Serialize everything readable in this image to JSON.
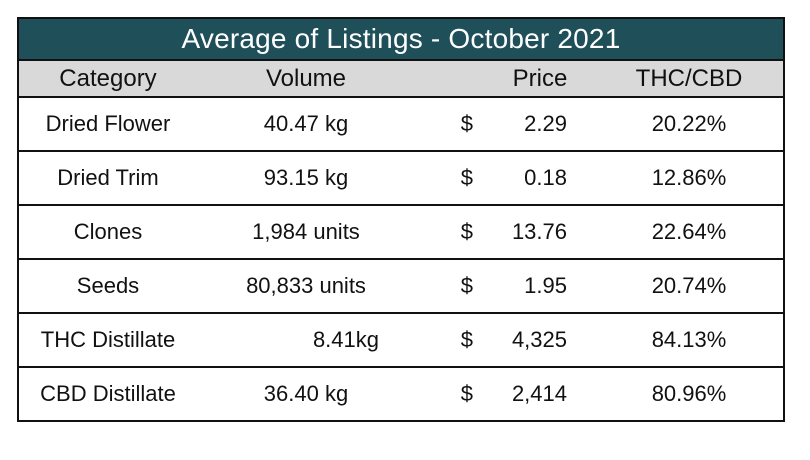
{
  "title": "Average of Listings - October 2021",
  "columns": {
    "category": "Category",
    "volume": "Volume",
    "price": "Price",
    "thc_cbd": "THC/CBD"
  },
  "rows": [
    {
      "category": "Dried Flower",
      "volume": "40.47 kg",
      "currency": "$",
      "price": "2.29",
      "thc_cbd": "20.22%"
    },
    {
      "category": "Dried Trim",
      "volume": "93.15 kg",
      "currency": "$",
      "price": "0.18",
      "thc_cbd": "12.86%"
    },
    {
      "category": "Clones",
      "volume": "1,984 units",
      "currency": "$",
      "price": "13.76",
      "thc_cbd": "22.64%"
    },
    {
      "category": "Seeds",
      "volume": "80,833 units",
      "currency": "$",
      "price": "1.95",
      "thc_cbd": "20.74%"
    },
    {
      "category": "THC Distillate",
      "volume": "8.41kg",
      "currency": "$",
      "price": "4,325",
      "thc_cbd": "84.13%"
    },
    {
      "category": "CBD Distillate",
      "volume": "36.40 kg",
      "currency": "$",
      "price": "2,414",
      "thc_cbd": "80.96%"
    }
  ],
  "colors": {
    "title_background": "#1f4f59",
    "header_background": "#d9d9d9"
  }
}
